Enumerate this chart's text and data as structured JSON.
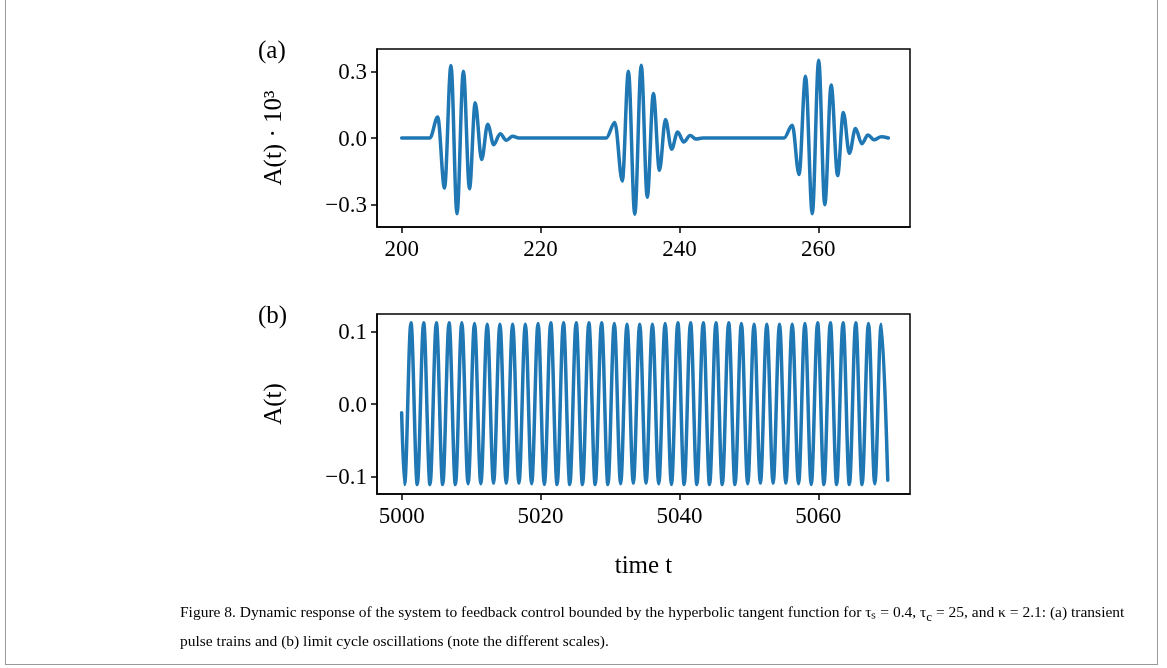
{
  "chart_data": [
    {
      "type": "line",
      "ylabel": "A(t) · 10³",
      "annotations": [
        "(a)"
      ],
      "xlim": [
        196.45,
        273.2
      ],
      "ylim": [
        -0.4,
        0.4
      ],
      "xticks": [
        200,
        220,
        240,
        260
      ],
      "yticks": [
        {
          "value": -0.3,
          "label": "−0.3"
        },
        {
          "value": 0,
          "label": "0.0"
        },
        0.3
      ],
      "grid": false,
      "marker": "none",
      "line_style": "solid",
      "series": [
        {
          "color": "#1f77b4",
          "x": [
            200,
            204.06,
            205.19,
            206.17,
            207.1,
            207.97,
            208.89,
            209.77,
            210.59,
            211.52,
            212.39,
            213.26,
            214.19,
            215.06,
            215.99,
            216.86,
            229.46,
            230.69,
            231.77,
            232.65,
            233.57,
            234.5,
            235.37,
            236.25,
            237.12,
            237.99,
            238.87,
            239.74,
            240.62,
            241.54,
            242.42,
            243.34,
            255.06,
            256.25,
            257.22,
            258.15,
            259.13,
            260.05,
            260.93,
            261.85,
            262.78,
            263.6,
            264.47,
            265.35,
            266.27,
            267.15,
            268.02,
            269.05,
            270.08
          ],
          "values": [
            0,
            0,
            0.094,
            -0.225,
            0.326,
            -0.34,
            0.3,
            -0.228,
            0.158,
            -0.097,
            0.062,
            -0.03,
            0.019,
            -0.01,
            0.008,
            0,
            0,
            0.07,
            -0.193,
            0.3,
            -0.343,
            0.327,
            -0.266,
            0.2,
            -0.145,
            0.083,
            -0.05,
            0.027,
            -0.018,
            0.011,
            -0.005,
            0,
            0,
            0.057,
            -0.164,
            0.278,
            -0.34,
            0.349,
            -0.3,
            0.238,
            -0.169,
            0.115,
            -0.069,
            0.043,
            -0.026,
            0.014,
            -0.008,
            0.006,
            0
          ]
        }
      ]
    },
    {
      "type": "line",
      "ylabel": "A(t)",
      "xlabel": "time t",
      "annotations": [
        "(b)",
        "Figure 8. Dynamic response of the system to feedback control bounded by the hyperbolic tangent function for τₛ = 0.4, τ$_{c}$ = 25, and κ = 2.1: (a) transient pulse trains and (b) limit cycle oscillations (note the different scales)."
      ],
      "xlim": [
        4996.45,
        5073.2
      ],
      "ylim": [
        -0.124,
        0.124
      ],
      "xticks": [
        5000,
        5020,
        5040,
        5060
      ],
      "yticks": [
        {
          "value": -0.1,
          "label": "−0.1"
        },
        {
          "value": 0,
          "label": "0.0"
        },
        0.1
      ],
      "grid": false,
      "marker": "none",
      "line_style": "solid",
      "series": [
        {
          "color": "#1f77b4",
          "x": [
            5000,
            5000.42,
            5001.34,
            5002.25,
            5003.17,
            5004.08,
            5005,
            5005.91,
            5006.83,
            5007.74,
            5008.66,
            5009.57,
            5010.49,
            5011.4,
            5012.32,
            5013.23,
            5014.15,
            5015.06,
            5015.98,
            5016.89,
            5017.81,
            5018.72,
            5019.64,
            5020.55,
            5021.47,
            5022.38,
            5023.3,
            5024.21,
            5025.13,
            5026.04,
            5026.96,
            5027.87,
            5028.79,
            5029.7,
            5030.62,
            5031.53,
            5032.45,
            5033.36,
            5034.28,
            5035.19,
            5036.11,
            5037.02,
            5037.94,
            5038.85,
            5039.77,
            5040.68,
            5041.6,
            5042.51,
            5043.43,
            5044.34,
            5045.26,
            5046.17,
            5047.09,
            5048,
            5048.92,
            5049.83,
            5050.75,
            5051.66,
            5052.58,
            5053.49,
            5054.41,
            5055.32,
            5056.24,
            5057.15,
            5058.07,
            5058.98,
            5059.9,
            5060.81,
            5061.73,
            5062.64,
            5063.56,
            5064.47,
            5065.39,
            5066.3,
            5067.22,
            5068.13,
            5069.05,
            5070
          ],
          "values": [
            -0.012,
            -0.111,
            0.112,
            -0.111,
            0.112,
            -0.111,
            0.112,
            -0.111,
            0.112,
            -0.111,
            0.112,
            -0.11,
            0.111,
            -0.11,
            0.11,
            -0.109,
            0.11,
            -0.109,
            0.11,
            -0.109,
            0.11,
            -0.11,
            0.111,
            -0.111,
            0.112,
            -0.111,
            0.112,
            -0.111,
            0.112,
            -0.111,
            0.112,
            -0.111,
            0.112,
            -0.111,
            0.111,
            -0.11,
            0.11,
            -0.109,
            0.11,
            -0.109,
            0.11,
            -0.11,
            0.111,
            -0.111,
            0.112,
            -0.111,
            0.112,
            -0.111,
            0.112,
            -0.111,
            0.112,
            -0.111,
            0.112,
            -0.111,
            0.111,
            -0.11,
            0.11,
            -0.109,
            0.11,
            -0.109,
            0.11,
            -0.109,
            0.11,
            -0.11,
            0.111,
            -0.111,
            0.112,
            -0.111,
            0.112,
            -0.111,
            0.112,
            -0.111,
            0.112,
            -0.111,
            0.111,
            -0.11,
            0.11,
            -0.105
          ]
        }
      ]
    }
  ]
}
